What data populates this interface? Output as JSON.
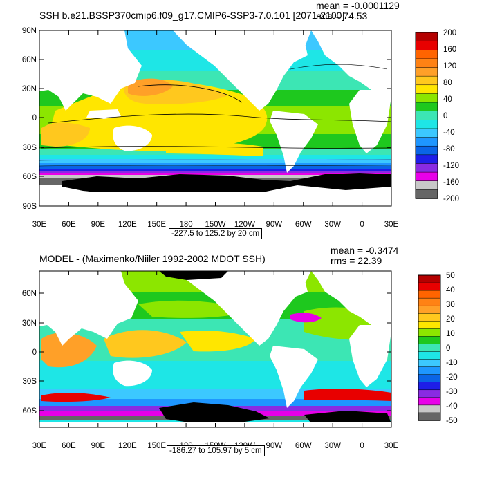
{
  "colors": {
    "scale": [
      "#666666",
      "#c8c8c8",
      "#e800e8",
      "#8a2be2",
      "#1e1ee8",
      "#0a64e6",
      "#1e96ff",
      "#3cc8ff",
      "#1ee6e6",
      "#3ce6b4",
      "#1ec81e",
      "#8ce600",
      "#ffe600",
      "#ffc81e",
      "#ffa028",
      "#ff8214",
      "#ff6400",
      "#e80000",
      "#b40000"
    ],
    "land": "#ffffff",
    "ice": "#000000"
  },
  "panels": [
    {
      "title": "SSH b.e21.BSSP370cmip6.f09_g17.CMIP6-SSP3-7.0.101 [2071-2100]",
      "mean_text": "mean = -0.0001129",
      "rms_text": "rms = 74.53",
      "range_text": "-227.5 to 125.2 by 20 cm",
      "colorbar_labels": [
        "200",
        "160",
        "120",
        "80",
        "40",
        "0",
        "-40",
        "-80",
        "-120",
        "-160",
        "-200"
      ],
      "lat_labels": [
        "90N",
        "60N",
        "30N",
        "0",
        "30S",
        "60S",
        "90S"
      ],
      "lon_labels": [
        "30E",
        "60E",
        "90E",
        "120E",
        "150E",
        "180",
        "150W",
        "120W",
        "90W",
        "60W",
        "30W",
        "0",
        "30E"
      ]
    },
    {
      "title": "MODEL - (Maximenko/Niiler 1992-2002 MDOT SSH)",
      "mean_text": "mean = -0.3474",
      "rms_text": "rms = 22.39",
      "range_text": "-186.27 to 105.97 by 5 cm",
      "colorbar_labels": [
        "50",
        "40",
        "30",
        "20",
        "10",
        "0",
        "-10",
        "-20",
        "-30",
        "-40",
        "-50"
      ],
      "lat_labels": [
        "60N",
        "30N",
        "0",
        "30S",
        "60S"
      ],
      "lon_labels": [
        "30E",
        "60E",
        "90E",
        "120E",
        "150E",
        "180",
        "150W",
        "120W",
        "90W",
        "60W",
        "30W",
        "0",
        "30E"
      ]
    }
  ]
}
